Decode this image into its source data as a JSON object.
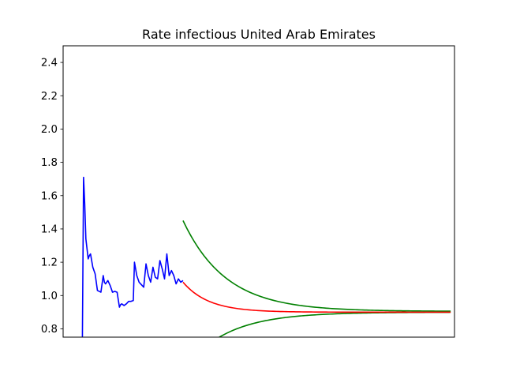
{
  "chart_data": {
    "type": "line",
    "title": "Rate infectious United Arab Emirates",
    "xlabel": "",
    "ylabel": "",
    "ylim": [
      0.75,
      2.5
    ],
    "xlim": [
      -10,
      193
    ],
    "y_ticks": [
      0.8,
      1.0,
      1.2,
      1.4,
      1.6,
      1.8,
      2.0,
      2.2,
      2.4
    ],
    "y_tick_labels": [
      "0.8",
      "1.0",
      "1.2",
      "1.4",
      "1.6",
      "1.8",
      "2.0",
      "2.2",
      "2.4"
    ],
    "show_x_ticks": false,
    "grid": false,
    "colors": {
      "observed": "#0000ff",
      "forecast": "#ff0000",
      "bounds": "#008000"
    },
    "observed": {
      "x": [
        0,
        0.6,
        1.2,
        1.8,
        2.4,
        3.0,
        3.6,
        4.2,
        5.4,
        6.6,
        7.8,
        9.6,
        10.8,
        11.4,
        12.0,
        13.2,
        14.4,
        15.6,
        16.8,
        18.0,
        19.2,
        19.8,
        20.4,
        21.6,
        22.8,
        24.0,
        25.2,
        26.4,
        27.0,
        27.6,
        28.2,
        29.4,
        30.6,
        31.8,
        33.0,
        34.2,
        35.4,
        36.6,
        37.8,
        39.0,
        40.2,
        41.4,
        42.6,
        43.8,
        45.0,
        46.2,
        47.4,
        48.6,
        49.8,
        51.0,
        52.2
      ],
      "y": [
        0.75,
        1.71,
        1.55,
        1.34,
        1.28,
        1.22,
        1.24,
        1.25,
        1.17,
        1.13,
        1.03,
        1.02,
        1.12,
        1.08,
        1.07,
        1.09,
        1.06,
        1.02,
        1.025,
        1.02,
        0.93,
        0.945,
        0.95,
        0.94,
        0.95,
        0.965,
        0.965,
        0.97,
        1.2,
        1.16,
        1.12,
        1.08,
        1.065,
        1.05,
        1.19,
        1.12,
        1.08,
        1.17,
        1.11,
        1.1,
        1.21,
        1.16,
        1.1,
        1.25,
        1.12,
        1.15,
        1.12,
        1.07,
        1.1,
        1.08,
        1.09
      ]
    },
    "forecast": {
      "x_start": 52.2,
      "x_end": 191,
      "y_start": 1.08,
      "y_end": 0.9,
      "decay": 0.075
    },
    "upper_bound": {
      "x_start": 52.2,
      "x_end": 191,
      "y_start": 1.45,
      "y_end": 0.905,
      "decay": 0.045
    },
    "lower_bound": {
      "x_start": 52.2,
      "x_end": 191,
      "y_start": 0.55,
      "y_end": 0.9,
      "decay": 0.045
    }
  }
}
